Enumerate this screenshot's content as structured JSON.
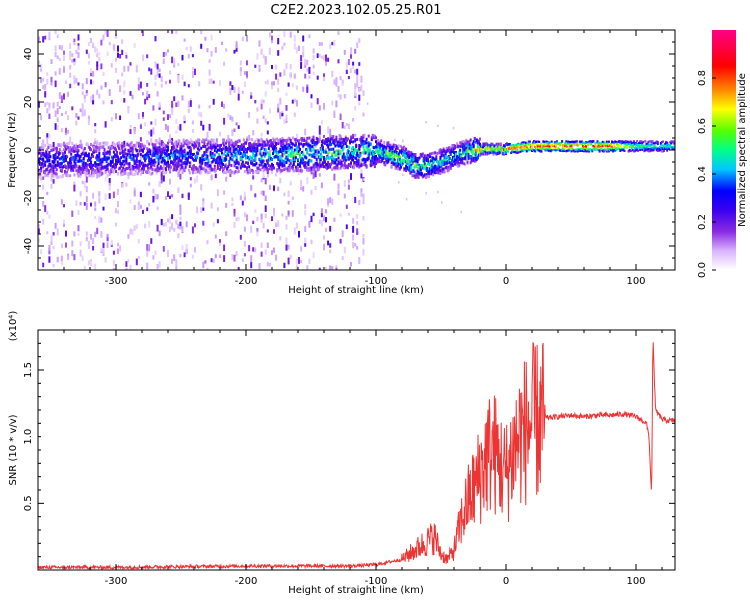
{
  "title": "C2E2.2023.102.05.25.R01",
  "chart_data": [
    {
      "type": "heatmap",
      "xlabel": "Height of straight line (km)",
      "ylabel": "Frequency (Hz)",
      "xlim": [
        -360,
        130
      ],
      "ylim": [
        -50,
        50
      ],
      "xticks": [
        -300,
        -200,
        -100,
        0,
        100
      ],
      "yticks": [
        -40,
        -20,
        0,
        20,
        40
      ],
      "colorbar": {
        "label": "Normalized spectral amplitude",
        "range": [
          0.0,
          1.0
        ],
        "ticks": [
          0.0,
          0.2,
          0.4,
          0.6,
          0.8
        ],
        "colormap": [
          "#ffffff",
          "#d9b3ff",
          "#8a2be2",
          "#5a00e6",
          "#0000ff",
          "#00c8ff",
          "#00ff88",
          "#55ff00",
          "#ffff00",
          "#ff8800",
          "#ff0000",
          "#ff0088"
        ]
      },
      "ridge": {
        "x": [
          -360,
          -300,
          -250,
          -200,
          -150,
          -120,
          -100,
          -80,
          -70,
          -60,
          -50,
          -40,
          -30,
          -20,
          -10,
          0,
          20,
          50,
          80,
          100,
          130
        ],
        "y": [
          -4,
          -3,
          -2,
          -2,
          -1,
          0,
          0,
          -3,
          -6,
          -6,
          -4,
          -2,
          0,
          1,
          1,
          1,
          2,
          2,
          2,
          2,
          2
        ],
        "peak_amplitude": [
          0.35,
          0.35,
          0.4,
          0.45,
          0.55,
          0.5,
          0.55,
          0.6,
          0.6,
          0.55,
          0.5,
          0.45,
          0.6,
          0.7,
          0.75,
          0.8,
          0.85,
          0.88,
          0.85,
          0.55,
          0.5
        ]
      }
    },
    {
      "type": "line",
      "xlabel": "Height of straight line (km)",
      "ylabel": "SNR (10 * v/v)",
      "y_multiplier": "(x10⁴)",
      "xlim": [
        -360,
        130
      ],
      "ylim": [
        0,
        1.8
      ],
      "xticks": [
        -300,
        -200,
        -100,
        0,
        100
      ],
      "yticks": [
        0.5,
        1.0,
        1.5
      ],
      "series": [
        {
          "color": "#ee3333",
          "x": [
            -360,
            -300,
            -250,
            -200,
            -150,
            -120,
            -100,
            -80,
            -70,
            -60,
            -55,
            -50,
            -45,
            -40,
            -35,
            -30,
            -25,
            -20,
            -15,
            -10,
            -5,
            0,
            5,
            10,
            15,
            20,
            25,
            30,
            40,
            50,
            60,
            70,
            80,
            90,
            100,
            105,
            108,
            110,
            112,
            113,
            115,
            120,
            125,
            130
          ],
          "y": [
            0.02,
            0.02,
            0.025,
            0.03,
            0.03,
            0.03,
            0.04,
            0.08,
            0.15,
            0.22,
            0.25,
            0.12,
            0.08,
            0.15,
            0.35,
            0.5,
            0.6,
            0.72,
            0.85,
            0.9,
            0.8,
            0.72,
            0.88,
            1.0,
            1.05,
            1.1,
            1.12,
            1.14,
            1.15,
            1.16,
            1.15,
            1.16,
            1.16,
            1.17,
            1.15,
            1.12,
            1.1,
            1.0,
            0.55,
            1.75,
            1.2,
            1.13,
            1.12,
            1.12
          ]
        }
      ]
    }
  ]
}
